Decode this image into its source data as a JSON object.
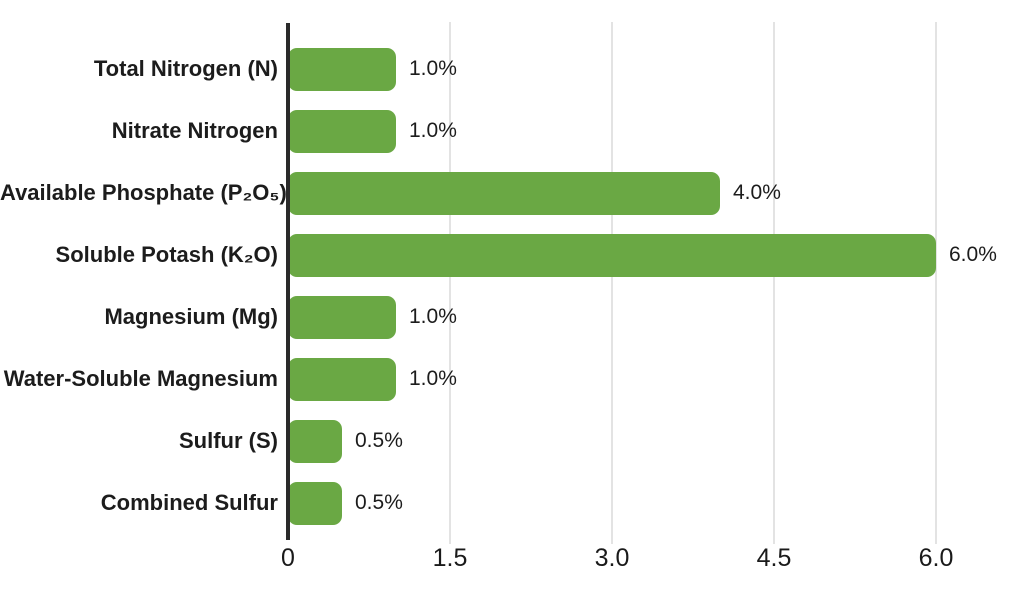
{
  "chart_data": {
    "type": "bar",
    "orientation": "horizontal",
    "title": "",
    "xlabel": "",
    "ylabel": "",
    "categories": [
      "Total Nitrogen (N)",
      "Nitrate Nitrogen",
      "Available Phosphate (P₂O₅)",
      "Soluble Potash (K₂O)",
      "Magnesium (Mg)",
      "Water-Soluble Magnesium",
      "Sulfur (S)",
      "Combined Sulfur"
    ],
    "values": [
      1.0,
      1.0,
      4.0,
      6.0,
      1.0,
      1.0,
      0.5,
      0.5
    ],
    "value_labels": [
      "1.0%",
      "1.0%",
      "4.0%",
      "6.0%",
      "1.0%",
      "1.0%",
      "0.5%",
      "0.5%"
    ],
    "xlim": [
      0,
      6
    ],
    "x_ticks": [
      0,
      1.5,
      3.0,
      4.5,
      6.0
    ],
    "x_tick_labels": [
      "0",
      "1.5",
      "3.0",
      "4.5",
      "6.0"
    ],
    "grid": "vertical gridlines at x ticks",
    "legend": "none",
    "bar_color": "#6aa844",
    "axis_line_color": "#2a2a2a",
    "gridline_color": "#e3e3e3",
    "text_color": "#1c1c1c"
  }
}
